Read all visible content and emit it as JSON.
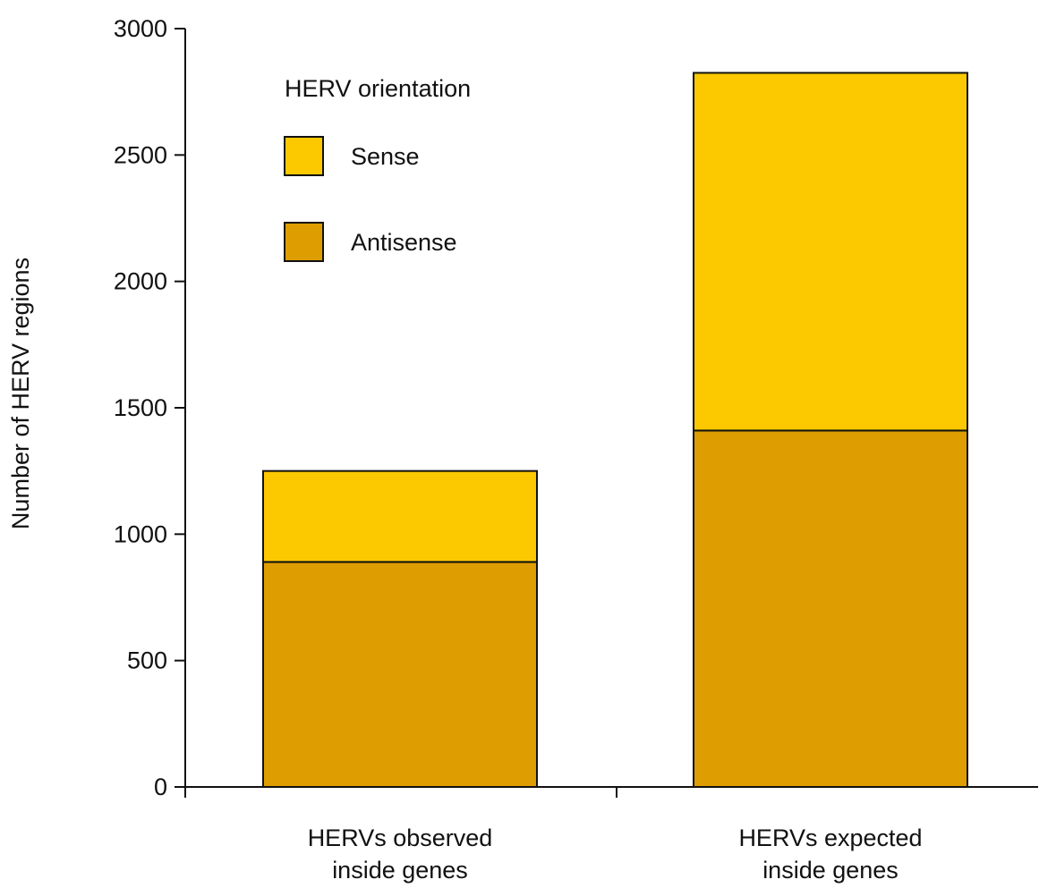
{
  "chart_data": {
    "type": "bar",
    "stacked": true,
    "categories": [
      [
        "HERVs observed",
        "inside genes"
      ],
      [
        "HERVs expected",
        "inside genes"
      ]
    ],
    "series": [
      {
        "name": "Antisense",
        "values": [
          890,
          1410
        ],
        "color": "#DE9D00"
      },
      {
        "name": "Sense",
        "values": [
          360,
          1415
        ],
        "color": "#FCC900"
      }
    ],
    "ylabel": "Number of HERV regions",
    "ylim": [
      0,
      3000
    ],
    "yticks": [
      0,
      500,
      1000,
      1500,
      2000,
      2500,
      3000
    ],
    "legend": {
      "title": "HERV orientation",
      "entries": [
        {
          "label": "Sense",
          "color": "#FCC900"
        },
        {
          "label": "Antisense",
          "color": "#DE9D00"
        }
      ],
      "placement": "top-left"
    },
    "grid": false
  }
}
